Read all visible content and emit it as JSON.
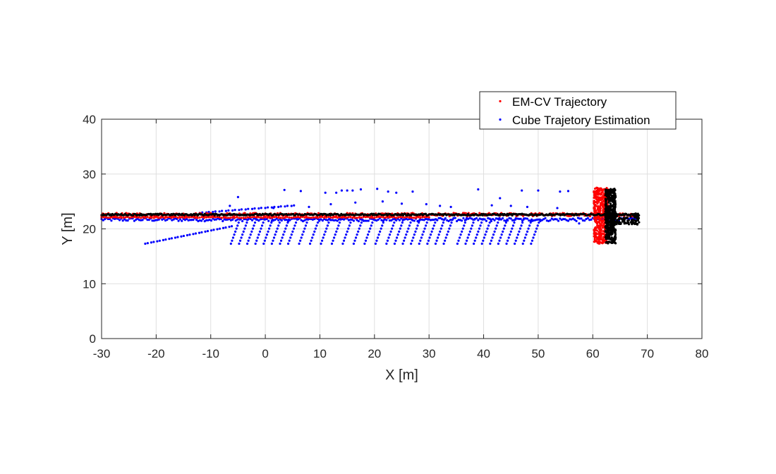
{
  "chart_data": {
    "type": "scatter",
    "title": "",
    "xlabel": "X [m]",
    "ylabel": "Y [m]",
    "xlim": [
      -30,
      80
    ],
    "ylim": [
      0,
      40
    ],
    "xticks": [
      -30,
      -20,
      -10,
      0,
      10,
      20,
      30,
      40,
      50,
      60,
      70,
      80
    ],
    "yticks": [
      0,
      10,
      20,
      30,
      40
    ],
    "grid": true,
    "legend_position": "top-right, outside above plot",
    "legend": [
      {
        "label": "EM-CV Trajectory",
        "color": "#ff0000"
      },
      {
        "label": "Cube Trajetory Estimation",
        "color": "#0000ff"
      }
    ],
    "series": [
      {
        "name": "EM-CV Trajectory",
        "color": "#ff0000",
        "segments": [
          {
            "x0": -30,
            "x1": 68,
            "y0": 22.3,
            "y1": 22.9,
            "step": 0.25
          },
          {
            "x0": -30,
            "x1": 30,
            "y0": 22.0,
            "y1": 22.2,
            "step": 0.4
          }
        ],
        "clusters": [
          {
            "x": [
              60.2,
              62.8
            ],
            "y": [
              17.3,
              27.5
            ],
            "n": 380
          }
        ]
      },
      {
        "name": "Cube Trajetory Estimation",
        "color": "#0000ff",
        "segments": [
          {
            "x0": -30,
            "x1": 68,
            "y0": 21.4,
            "y1": 22.0,
            "step": 0.3
          }
        ],
        "ramps": [
          {
            "x0": -22,
            "x1": -6,
            "y0": 17.3,
            "y1": 20.5,
            "step": 1.1
          },
          {
            "x0": -12,
            "x1": 5,
            "y0": 22.9,
            "y1": 24.2,
            "step": 1.2
          }
        ],
        "fans": [
          {
            "xs": [
              -4.5,
              -3,
              -1.5,
              0,
              1.5,
              3,
              4.5,
              6,
              8,
              10,
              12,
              14,
              16,
              18,
              20,
              22
            ],
            "ybottom": 17.3,
            "ytop": 22.2
          },
          {
            "xs": [
              24,
              25.5,
              27,
              28.5,
              30,
              31.5,
              33,
              34.5
            ],
            "ybottom": 17.3,
            "ytop": 22.2
          },
          {
            "xs": [
              37,
              38.5,
              40,
              41.5,
              43,
              44.5,
              46,
              47.5,
              49,
              50.5
            ],
            "ybottom": 17.3,
            "ytop": 22.2
          }
        ],
        "scattered": [
          {
            "x": -5.0,
            "y": 25.8
          },
          {
            "x": 3.5,
            "y": 27.1
          },
          {
            "x": 6.5,
            "y": 26.9
          },
          {
            "x": 11,
            "y": 26.6
          },
          {
            "x": 13,
            "y": 26.6
          },
          {
            "x": 14,
            "y": 27
          },
          {
            "x": 15,
            "y": 27
          },
          {
            "x": 16,
            "y": 27
          },
          {
            "x": 17.5,
            "y": 27.2
          },
          {
            "x": 20.5,
            "y": 27.3
          },
          {
            "x": 22.5,
            "y": 26.8
          },
          {
            "x": 24,
            "y": 26.6
          },
          {
            "x": 27,
            "y": 26.8
          },
          {
            "x": 39,
            "y": 27.2
          },
          {
            "x": 43,
            "y": 25.6
          },
          {
            "x": 47,
            "y": 27
          },
          {
            "x": 50,
            "y": 27
          },
          {
            "x": 54,
            "y": 26.8
          },
          {
            "x": 55.5,
            "y": 26.9
          },
          {
            "x": -6.5,
            "y": 24.2
          },
          {
            "x": 1.5,
            "y": 23.8
          },
          {
            "x": 8,
            "y": 24
          },
          {
            "x": 12,
            "y": 24.5
          },
          {
            "x": 16.5,
            "y": 24.8
          },
          {
            "x": 21.5,
            "y": 25
          },
          {
            "x": 25,
            "y": 24.6
          },
          {
            "x": 29.5,
            "y": 24.5
          },
          {
            "x": 32,
            "y": 24.2
          },
          {
            "x": 34,
            "y": 24
          },
          {
            "x": 41.5,
            "y": 24.3
          },
          {
            "x": 45,
            "y": 24.2
          },
          {
            "x": 48,
            "y": 24
          },
          {
            "x": 53.5,
            "y": 23.8
          },
          {
            "x": 57.5,
            "y": 21
          }
        ]
      },
      {
        "name": "",
        "color": "#000000",
        "segments": [
          {
            "x0": -30,
            "x1": 68.5,
            "y0": 22.45,
            "y1": 22.75,
            "step": 0.18
          }
        ],
        "clusters": [
          {
            "x": [
              62.3,
              64.2
            ],
            "y": [
              17.3,
              27.3
            ],
            "n": 420
          },
          {
            "x": [
              63,
              68.5
            ],
            "y": [
              20.8,
              22.8
            ],
            "n": 120
          }
        ]
      }
    ]
  }
}
